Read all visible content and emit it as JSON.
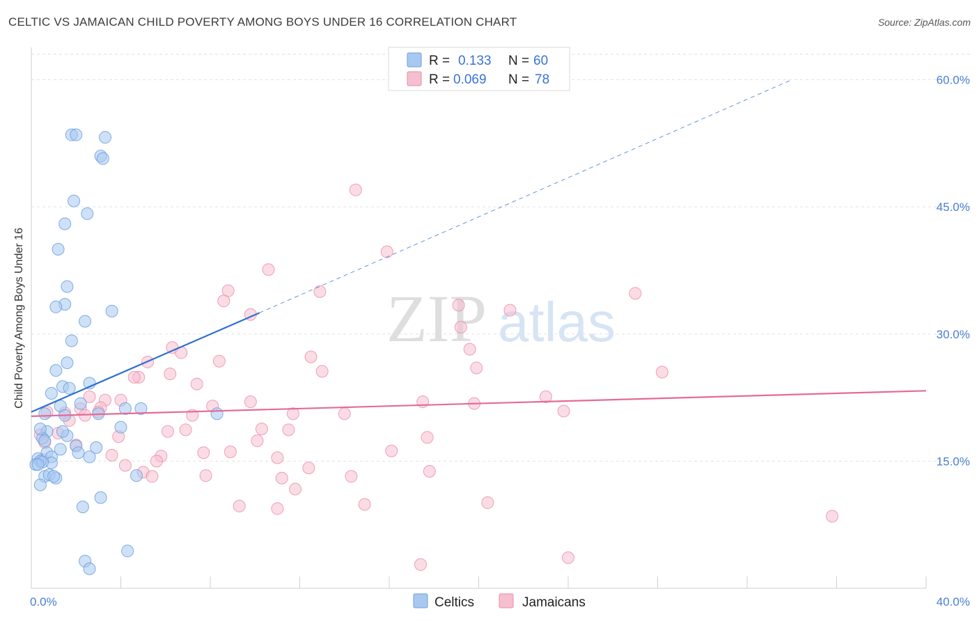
{
  "title": "CELTIC VS JAMAICAN CHILD POVERTY AMONG BOYS UNDER 16 CORRELATION CHART",
  "source": "Source: ZipAtlas.com",
  "watermark": {
    "zip": "ZIP",
    "atlas": "atlas"
  },
  "colors": {
    "celtic_fill": "#a8c8f0",
    "celtic_stroke": "#6a9fe0",
    "celtic_line": "#2f6fd0",
    "jamaican_fill": "#f6bfcf",
    "jamaican_stroke": "#ec8aa8",
    "jamaican_line": "#e56a96",
    "tick_label": "#4a7fd0"
  },
  "legend_top": {
    "rows": [
      {
        "r_label": "R = ",
        "r_value": "0.133",
        "n_label": "N = ",
        "n_value": "60"
      },
      {
        "r_label": "R = ",
        "r_value": "0.069",
        "n_label": "N = ",
        "n_value": "78"
      }
    ]
  },
  "legend_bottom": {
    "celtics": "Celtics",
    "jamaicans": "Jamaicans"
  },
  "chart_data": {
    "type": "scatter",
    "title": "CELTIC VS JAMAICAN CHILD POVERTY AMONG BOYS UNDER 16 CORRELATION CHART",
    "xlabel": "",
    "ylabel": "Child Poverty Among Boys Under 16",
    "xlim": [
      0,
      40
    ],
    "ylim": [
      0,
      63
    ],
    "x_tick_labels": [
      "0.0%",
      "40.0%"
    ],
    "y_ticks": [
      15,
      30,
      45,
      60
    ],
    "y_tick_labels": [
      "15.0%",
      "30.0%",
      "45.0%",
      "60.0%"
    ],
    "series": [
      {
        "name": "Celtics",
        "r": 0.133,
        "n": 60,
        "trend": {
          "x0": 0,
          "y0": 20.8,
          "x1": 10.2,
          "y1": 32.5,
          "dashed_to_x": 34.0,
          "dashed_to_y": 60.0
        },
        "points": [
          [
            1.8,
            53.5
          ],
          [
            2.0,
            53.5
          ],
          [
            3.3,
            53.2
          ],
          [
            3.1,
            51.0
          ],
          [
            3.2,
            50.7
          ],
          [
            1.9,
            45.7
          ],
          [
            2.5,
            44.2
          ],
          [
            1.5,
            43.0
          ],
          [
            1.2,
            40.0
          ],
          [
            1.6,
            35.6
          ],
          [
            1.5,
            33.5
          ],
          [
            1.1,
            33.2
          ],
          [
            3.6,
            32.7
          ],
          [
            2.4,
            31.5
          ],
          [
            1.8,
            29.2
          ],
          [
            1.6,
            26.6
          ],
          [
            1.1,
            25.7
          ],
          [
            2.6,
            24.2
          ],
          [
            1.4,
            23.8
          ],
          [
            1.7,
            23.6
          ],
          [
            0.9,
            23.0
          ],
          [
            2.2,
            21.8
          ],
          [
            1.3,
            21.5
          ],
          [
            3.0,
            20.6
          ],
          [
            4.2,
            21.2
          ],
          [
            4.9,
            21.2
          ],
          [
            8.3,
            20.6
          ],
          [
            0.6,
            20.6
          ],
          [
            1.5,
            20.4
          ],
          [
            4.0,
            19.0
          ],
          [
            1.6,
            18.0
          ],
          [
            0.7,
            18.5
          ],
          [
            0.5,
            17.7
          ],
          [
            0.4,
            18.8
          ],
          [
            0.6,
            17.4
          ],
          [
            1.4,
            18.5
          ],
          [
            2.0,
            16.8
          ],
          [
            2.9,
            16.6
          ],
          [
            1.3,
            16.4
          ],
          [
            0.7,
            16.0
          ],
          [
            2.1,
            16.0
          ],
          [
            2.6,
            15.5
          ],
          [
            0.9,
            15.5
          ],
          [
            0.3,
            15.3
          ],
          [
            0.4,
            15.0
          ],
          [
            0.9,
            14.8
          ],
          [
            0.2,
            14.6
          ],
          [
            0.5,
            14.9
          ],
          [
            0.6,
            13.2
          ],
          [
            0.8,
            13.4
          ],
          [
            1.1,
            13.0
          ],
          [
            0.4,
            12.2
          ],
          [
            4.7,
            13.3
          ],
          [
            3.1,
            10.7
          ],
          [
            2.3,
            9.6
          ],
          [
            4.3,
            4.4
          ],
          [
            2.4,
            3.2
          ],
          [
            2.6,
            2.3
          ],
          [
            0.3,
            14.6
          ],
          [
            1.0,
            13.2
          ]
        ]
      },
      {
        "name": "Jamaicans",
        "r": 0.069,
        "n": 78,
        "trend": {
          "x0": 0,
          "y0": 20.3,
          "x1": 40,
          "y1": 23.3
        },
        "points": [
          [
            14.5,
            47.0
          ],
          [
            15.9,
            39.7
          ],
          [
            10.6,
            37.6
          ],
          [
            12.9,
            35.0
          ],
          [
            27.0,
            34.8
          ],
          [
            8.8,
            35.1
          ],
          [
            8.6,
            33.9
          ],
          [
            19.1,
            33.4
          ],
          [
            21.4,
            32.8
          ],
          [
            9.8,
            32.3
          ],
          [
            19.2,
            30.8
          ],
          [
            19.6,
            28.2
          ],
          [
            6.3,
            28.4
          ],
          [
            6.7,
            27.8
          ],
          [
            12.5,
            27.3
          ],
          [
            8.4,
            26.8
          ],
          [
            5.2,
            26.7
          ],
          [
            19.9,
            26.0
          ],
          [
            13.0,
            25.6
          ],
          [
            28.2,
            25.5
          ],
          [
            6.2,
            25.3
          ],
          [
            4.8,
            24.9
          ],
          [
            4.6,
            24.9
          ],
          [
            7.4,
            24.1
          ],
          [
            2.6,
            22.6
          ],
          [
            23.0,
            22.6
          ],
          [
            3.3,
            22.2
          ],
          [
            4.0,
            22.2
          ],
          [
            17.5,
            22.0
          ],
          [
            9.8,
            22.0
          ],
          [
            19.8,
            21.8
          ],
          [
            8.1,
            21.5
          ],
          [
            3.1,
            21.3
          ],
          [
            2.2,
            21.2
          ],
          [
            3.0,
            20.8
          ],
          [
            14.0,
            20.6
          ],
          [
            11.7,
            20.6
          ],
          [
            7.2,
            20.4
          ],
          [
            23.8,
            20.9
          ],
          [
            1.5,
            20.7
          ],
          [
            2.4,
            20.4
          ],
          [
            0.7,
            20.8
          ],
          [
            1.7,
            19.8
          ],
          [
            6.9,
            18.7
          ],
          [
            6.1,
            18.5
          ],
          [
            10.3,
            18.8
          ],
          [
            11.5,
            18.7
          ],
          [
            0.4,
            18.1
          ],
          [
            1.2,
            18.3
          ],
          [
            0.6,
            17.2
          ],
          [
            3.9,
            17.9
          ],
          [
            17.7,
            17.8
          ],
          [
            10.1,
            17.4
          ],
          [
            2.0,
            16.9
          ],
          [
            8.9,
            16.1
          ],
          [
            7.7,
            16.0
          ],
          [
            16.1,
            16.2
          ],
          [
            5.8,
            15.6
          ],
          [
            3.6,
            15.7
          ],
          [
            11.0,
            15.4
          ],
          [
            5.6,
            15.0
          ],
          [
            4.2,
            14.5
          ],
          [
            12.4,
            14.2
          ],
          [
            5.0,
            13.7
          ],
          [
            5.4,
            13.2
          ],
          [
            7.8,
            13.3
          ],
          [
            14.3,
            13.2
          ],
          [
            11.2,
            13.0
          ],
          [
            11.8,
            11.7
          ],
          [
            17.8,
            13.8
          ],
          [
            9.3,
            9.7
          ],
          [
            11.0,
            9.4
          ],
          [
            14.9,
            9.9
          ],
          [
            20.4,
            10.1
          ],
          [
            35.8,
            8.5
          ],
          [
            24.0,
            3.6
          ],
          [
            17.4,
            2.8
          ],
          [
            0.5,
            15.2
          ]
        ]
      }
    ]
  }
}
